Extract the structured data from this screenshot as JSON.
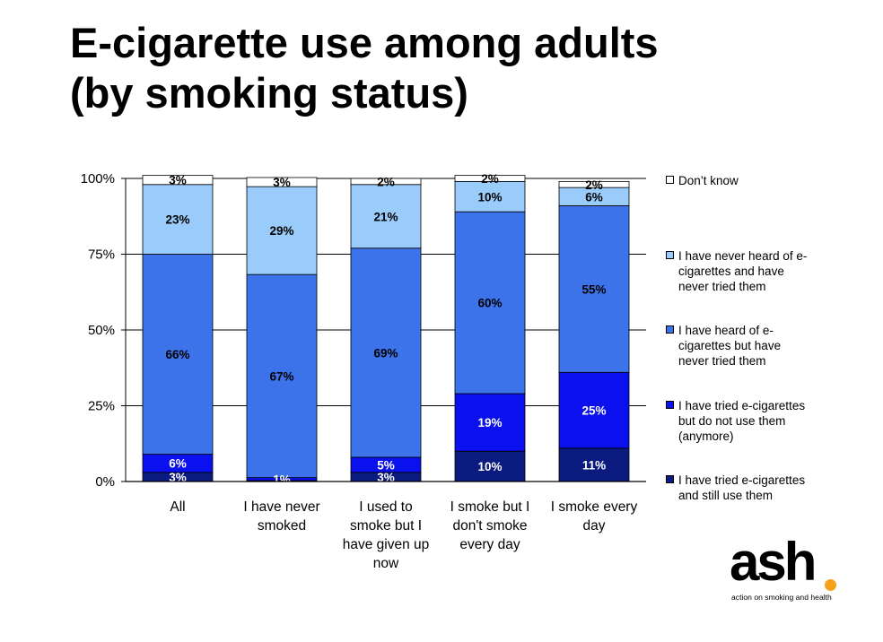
{
  "page": {
    "title_lines": [
      "E-cigarette use among adults",
      "(by smoking status)"
    ]
  },
  "logo": {
    "text": "ash",
    "tagline": "action on smoking and health",
    "dot_color": "#f7a11a"
  },
  "chart_data": {
    "type": "bar",
    "stacked": true,
    "normalized": true,
    "title": "",
    "xlabel": "",
    "ylabel": "",
    "ylim": [
      0,
      100
    ],
    "yticks": [
      "0%",
      "25%",
      "50%",
      "75%",
      "100%"
    ],
    "ytick_values": [
      0,
      25,
      50,
      75,
      100
    ],
    "grid": true,
    "legend_position": "right",
    "categories": [
      [
        "All"
      ],
      [
        "I have never",
        "smoked"
      ],
      [
        "I used to",
        "smoke but I",
        "have given up",
        "now"
      ],
      [
        "I smoke but I",
        "don't smoke",
        "every day"
      ],
      [
        "I smoke every",
        "day"
      ]
    ],
    "series": [
      {
        "name": "I have tried e-cigarettes and still use them",
        "legend_lines": [
          "I have tried e-cigarettes",
          "and still use them"
        ],
        "color": "#0b1a7e",
        "label_color": "#ffffff",
        "values": [
          3,
          0.3,
          3,
          10,
          11
        ],
        "labels": [
          "3%",
          "",
          "3%",
          "10%",
          "11%"
        ]
      },
      {
        "name": "I have tried e-cigarettes but do not use them (anymore)",
        "legend_lines": [
          "I have tried e-cigarettes",
          "but do not use them",
          "(anymore)"
        ],
        "color": "#0a11ee",
        "label_color": "#ffffff",
        "values": [
          6,
          1,
          5,
          19,
          25
        ],
        "labels": [
          "6%",
          "1%",
          "5%",
          "19%",
          "25%"
        ]
      },
      {
        "name": "I have heard of e-cigarettes but have never tried them",
        "legend_lines": [
          "I have heard of e-",
          "cigarettes but have",
          "never tried them"
        ],
        "color": "#3c73ea",
        "label_color": "#000000",
        "values": [
          66,
          67,
          69,
          60,
          55
        ],
        "labels": [
          "66%",
          "67%",
          "69%",
          "60%",
          "55%"
        ]
      },
      {
        "name": "I have never heard of e-cigarettes and have never tried them",
        "legend_lines": [
          "I have never heard of e-",
          "cigarettes and have",
          "never tried them"
        ],
        "color": "#99ccfa",
        "label_color": "#000000",
        "values": [
          23,
          29,
          21,
          10,
          6
        ],
        "labels": [
          "23%",
          "29%",
          "21%",
          "10%",
          "6%"
        ]
      },
      {
        "name": "Don't know",
        "legend_lines": [
          "Don’t know"
        ],
        "color": "#ffffff",
        "label_color": "#000000",
        "values": [
          3,
          3,
          2,
          2,
          2
        ],
        "labels": [
          "3%",
          "3%",
          "2%",
          "2%",
          "2%"
        ]
      }
    ]
  }
}
